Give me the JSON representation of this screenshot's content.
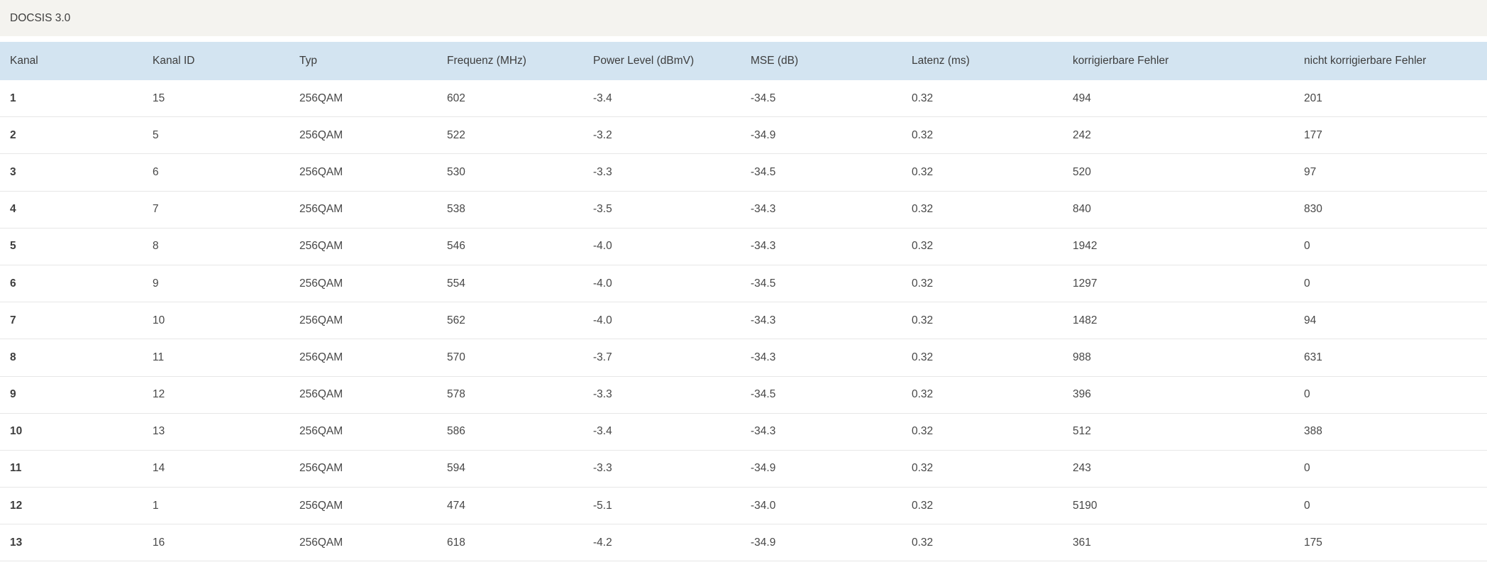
{
  "section": {
    "title": "DOCSIS 3.0"
  },
  "table": {
    "columns": [
      "Kanal",
      "Kanal ID",
      "Typ",
      "Frequenz (MHz)",
      "Power Level (dBmV)",
      "MSE (dB)",
      "Latenz (ms)",
      "korrigierbare Fehler",
      "nicht korrigierbare Fehler"
    ],
    "rows": [
      [
        "1",
        "15",
        "256QAM",
        "602",
        "-3.4",
        "-34.5",
        "0.32",
        "494",
        "201"
      ],
      [
        "2",
        "5",
        "256QAM",
        "522",
        "-3.2",
        "-34.9",
        "0.32",
        "242",
        "177"
      ],
      [
        "3",
        "6",
        "256QAM",
        "530",
        "-3.3",
        "-34.5",
        "0.32",
        "520",
        "97"
      ],
      [
        "4",
        "7",
        "256QAM",
        "538",
        "-3.5",
        "-34.3",
        "0.32",
        "840",
        "830"
      ],
      [
        "5",
        "8",
        "256QAM",
        "546",
        "-4.0",
        "-34.3",
        "0.32",
        "1942",
        "0"
      ],
      [
        "6",
        "9",
        "256QAM",
        "554",
        "-4.0",
        "-34.5",
        "0.32",
        "1297",
        "0"
      ],
      [
        "7",
        "10",
        "256QAM",
        "562",
        "-4.0",
        "-34.3",
        "0.32",
        "1482",
        "94"
      ],
      [
        "8",
        "11",
        "256QAM",
        "570",
        "-3.7",
        "-34.3",
        "0.32",
        "988",
        "631"
      ],
      [
        "9",
        "12",
        "256QAM",
        "578",
        "-3.3",
        "-34.5",
        "0.32",
        "396",
        "0"
      ],
      [
        "10",
        "13",
        "256QAM",
        "586",
        "-3.4",
        "-34.3",
        "0.32",
        "512",
        "388"
      ],
      [
        "11",
        "14",
        "256QAM",
        "594",
        "-3.3",
        "-34.9",
        "0.32",
        "243",
        "0"
      ],
      [
        "12",
        "1",
        "256QAM",
        "474",
        "-5.1",
        "-34.0",
        "0.32",
        "5190",
        "0"
      ],
      [
        "13",
        "16",
        "256QAM",
        "618",
        "-4.2",
        "-34.9",
        "0.32",
        "361",
        "175"
      ]
    ]
  },
  "colors": {
    "top_band_background": "#f4f3ef",
    "table_header_background": "#d3e4f1",
    "row_border": "#e7e7e7",
    "text": "#474747"
  }
}
